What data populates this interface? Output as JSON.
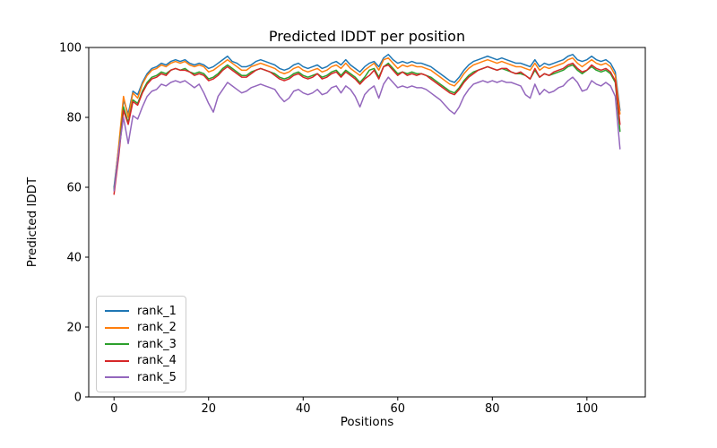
{
  "chart_data": {
    "type": "line",
    "title": "Predicted lDDT per position",
    "xlabel": "Positions",
    "ylabel": "Predicted lDDT",
    "xlim": [
      -5.35,
      112.35
    ],
    "ylim": [
      0,
      100
    ],
    "x_ticks": [
      0,
      20,
      40,
      60,
      80,
      100
    ],
    "y_ticks": [
      0,
      20,
      40,
      60,
      80,
      100
    ],
    "grid": false,
    "legend_position": "lower left",
    "x_start": 0,
    "n_positions": 108,
    "series": [
      {
        "name": "rank_1",
        "color": "#1f77b4",
        "values": [
          60,
          71.5,
          85,
          81,
          87.5,
          86.5,
          90,
          92.5,
          94,
          94.5,
          95.5,
          95,
          96,
          96.5,
          96,
          96.5,
          95.5,
          95,
          95.5,
          95,
          94,
          94.5,
          95.5,
          96.5,
          97.5,
          96,
          95.5,
          94.5,
          94.5,
          95,
          96,
          96.5,
          96,
          95.5,
          95,
          94,
          93.5,
          94,
          95,
          95.5,
          94.5,
          94,
          94.5,
          95,
          94,
          94.5,
          95.5,
          96,
          95,
          96.5,
          95,
          94,
          93,
          94.5,
          95.5,
          96,
          94.5,
          97,
          98,
          96.5,
          95.5,
          96,
          95.5,
          96,
          95.5,
          95.5,
          95,
          94.5,
          93.5,
          92.5,
          91.5,
          90.5,
          90,
          91.5,
          93.5,
          95,
          96,
          96.5,
          97,
          97.5,
          97,
          96.5,
          97,
          96.5,
          96,
          95.5,
          95.5,
          95,
          94.5,
          96.5,
          94.5,
          95.5,
          95,
          95.5,
          96,
          96.5,
          97.5,
          98,
          96.5,
          96,
          96.5,
          97.5,
          96.5,
          96,
          96.5,
          95.5,
          93,
          82
        ]
      },
      {
        "name": "rank_2",
        "color": "#ff7f0e",
        "values": [
          59,
          72,
          86,
          80,
          87,
          85.5,
          89.5,
          92,
          93.5,
          94,
          95,
          94.5,
          95.5,
          96,
          95.5,
          96,
          95,
          94.5,
          95,
          94.5,
          93,
          93.5,
          94.5,
          95.5,
          96.5,
          95.5,
          94.5,
          93.5,
          93.5,
          94.5,
          95,
          95.5,
          95,
          94.5,
          94,
          93,
          92.5,
          93,
          94,
          94.5,
          93.5,
          93,
          93.5,
          94,
          93,
          93.5,
          94.5,
          95,
          94,
          95.5,
          94,
          93,
          92,
          93.5,
          94.5,
          95.5,
          93.5,
          96.5,
          97,
          95.5,
          94,
          95,
          94.5,
          95,
          94.5,
          94.5,
          94,
          93.5,
          92.5,
          91.5,
          90.5,
          89.5,
          89,
          90.5,
          92.5,
          94,
          95,
          95.5,
          96,
          96.5,
          96,
          95.5,
          96,
          95.5,
          95,
          94.5,
          94.5,
          94,
          93.5,
          95.5,
          93.5,
          94.5,
          94,
          94.5,
          95,
          95.5,
          96.5,
          97,
          95.5,
          94.5,
          95.5,
          96.5,
          95.5,
          95,
          95.5,
          94.5,
          92,
          81
        ]
      },
      {
        "name": "rank_3",
        "color": "#2ca02c",
        "values": [
          59.5,
          70,
          83,
          78.5,
          85,
          84,
          87.5,
          90,
          91.5,
          92,
          93,
          92.5,
          93.5,
          94,
          93.5,
          94,
          93,
          92.5,
          93,
          92.5,
          91,
          91.5,
          92.5,
          94,
          95,
          94,
          93,
          92,
          92,
          93,
          93.5,
          94,
          93.5,
          93,
          92.5,
          91.5,
          91,
          91.5,
          92.5,
          93,
          92,
          91.5,
          92,
          92.5,
          91.5,
          92,
          93,
          93.5,
          92,
          93.5,
          92.5,
          91.5,
          90,
          91.5,
          93.5,
          94,
          91.5,
          94.5,
          95.5,
          94,
          92.5,
          93,
          92.5,
          93,
          92.5,
          92.5,
          92,
          91.5,
          90.5,
          89.5,
          88.5,
          87.5,
          87,
          88.5,
          90.5,
          92,
          93,
          93.5,
          94,
          94.5,
          94,
          93.5,
          94,
          93.5,
          93,
          92.5,
          92.5,
          92,
          91,
          93.5,
          91.5,
          92.5,
          92,
          92.5,
          93,
          93.5,
          94.5,
          95,
          93.5,
          92.5,
          93.5,
          94.5,
          93.5,
          93,
          93.5,
          92.5,
          90,
          76
        ]
      },
      {
        "name": "rank_4",
        "color": "#d62728",
        "values": [
          58,
          69,
          82,
          78,
          84.5,
          83.5,
          87,
          89.5,
          91,
          91.5,
          92.5,
          92,
          93.5,
          94,
          93.5,
          93.5,
          93,
          92,
          92.5,
          92,
          90.5,
          91,
          92,
          93.5,
          94.5,
          93.5,
          92.5,
          91.5,
          91.5,
          92.5,
          93.5,
          94,
          93.5,
          93,
          92,
          91,
          90.5,
          91,
          92,
          92.5,
          91.5,
          91,
          91.5,
          92.5,
          91,
          91.5,
          92.5,
          93,
          91.5,
          93,
          92,
          91,
          89.5,
          91,
          92,
          93.5,
          91,
          94.5,
          95,
          93.5,
          92,
          93,
          92,
          92.5,
          92,
          92.5,
          92,
          91,
          90,
          89,
          88,
          87,
          86.5,
          88,
          90,
          91.5,
          92.5,
          93.5,
          94,
          94.5,
          94,
          93.5,
          94,
          94,
          93,
          92.5,
          93,
          92,
          91,
          94,
          91.5,
          92.5,
          92,
          93,
          93.5,
          94,
          95,
          95.5,
          94,
          93,
          93.5,
          95,
          94,
          93.5,
          94,
          93,
          90.5,
          78
        ]
      },
      {
        "name": "rank_5",
        "color": "#9467bd",
        "values": [
          59,
          70.5,
          80,
          72.5,
          80.5,
          79.5,
          83,
          86,
          87.5,
          88,
          89.5,
          89,
          90,
          90.5,
          90,
          90.5,
          89.5,
          88.5,
          89.5,
          87,
          84,
          81.5,
          86,
          88,
          90,
          89,
          88,
          87,
          87.5,
          88.5,
          89,
          89.5,
          89,
          88.5,
          88,
          86,
          84.5,
          85.5,
          87.5,
          88,
          87,
          86.5,
          87,
          88,
          86.5,
          87,
          88.5,
          89,
          87,
          89,
          88,
          86,
          83,
          86.5,
          88,
          89,
          85.5,
          89.5,
          91.5,
          90,
          88.5,
          89,
          88.5,
          89,
          88.5,
          88.5,
          88,
          87,
          86,
          85,
          83.5,
          82,
          81,
          83,
          86,
          88,
          89.5,
          90,
          90.5,
          90,
          90.5,
          90,
          90.5,
          90,
          90,
          89.5,
          89,
          86.5,
          85.5,
          89.5,
          86.5,
          88,
          87,
          87.5,
          88.5,
          89,
          90.5,
          91.5,
          90,
          87.5,
          88,
          90.5,
          89.5,
          89,
          90,
          89,
          86,
          71
        ]
      }
    ]
  }
}
